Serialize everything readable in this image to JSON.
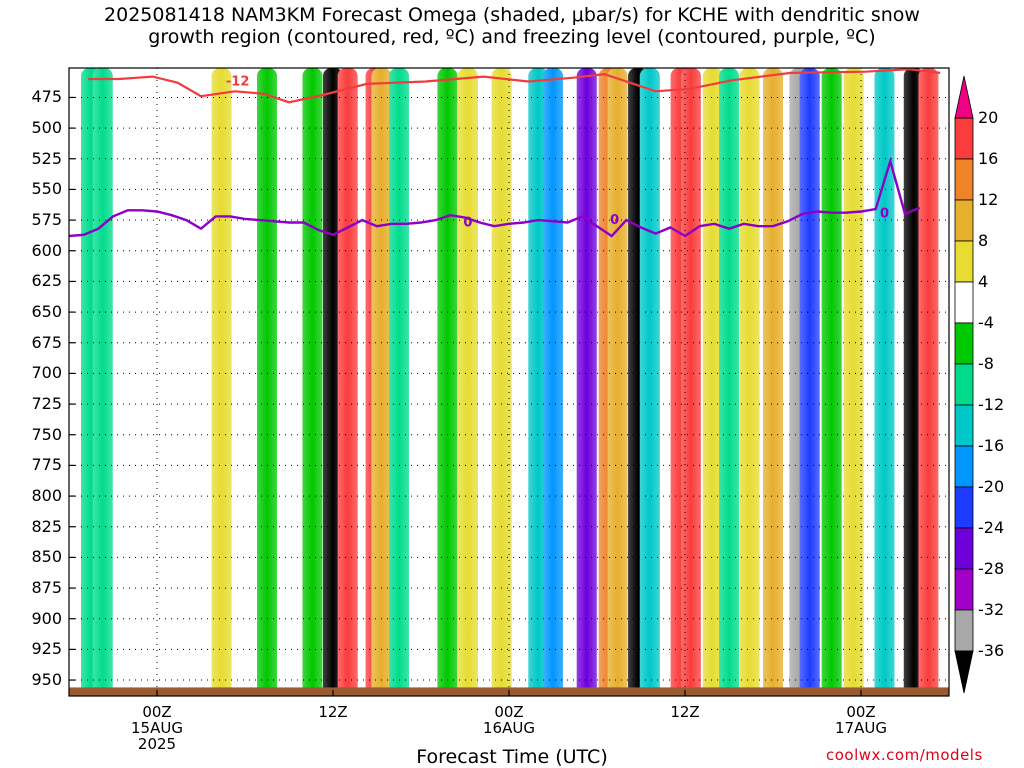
{
  "title": {
    "line1": "2025081418 NAM3KM Forecast Omega (shaded, μbar/s) for KCHE with dendritic snow",
    "line2": "growth region (contoured, red, ºC) and freezing level (contoured, purple, ºC)"
  },
  "credit": "coolwx.com/models",
  "colors": {
    "omega_scale": [
      "#000000",
      "#a8a8a8",
      "#a000c8",
      "#6e00dc",
      "#1e3cff",
      "#0096ff",
      "#00c8c8",
      "#00dc8c",
      "#00c800",
      "#ffffff",
      "#e6dc32",
      "#e6af2d",
      "#f08228",
      "#fa3c3c",
      "#f00082"
    ],
    "dgz_contour": "#f03c3c",
    "freezing_contour": "#8c00c8",
    "terrain": "#9b5a32"
  },
  "chart_data": {
    "type": "heatmap",
    "xlabel": "Forecast Time (UTC)",
    "x_ticks": [
      {
        "label": "00Z",
        "sub": "15AUG",
        "sub2": "2025",
        "hour": 6
      },
      {
        "label": "12Z",
        "sub": "",
        "sub2": "",
        "hour": 18
      },
      {
        "label": "00Z",
        "sub": "16AUG",
        "sub2": "",
        "hour": 30
      },
      {
        "label": "12Z",
        "sub": "",
        "sub2": "",
        "hour": 42
      },
      {
        "label": "00Z",
        "sub": "17AUG",
        "sub2": "",
        "hour": 54
      }
    ],
    "xlim_hours": [
      0,
      60
    ],
    "y_ticks": [
      475,
      500,
      525,
      550,
      575,
      600,
      625,
      650,
      675,
      700,
      725,
      750,
      775,
      800,
      825,
      850,
      875,
      900,
      925,
      950
    ],
    "ylim_hpa": [
      963,
      451
    ],
    "colorbar_ticks": [
      20,
      16,
      12,
      8,
      4,
      -4,
      -8,
      -12,
      -16,
      -20,
      -24,
      -28,
      -32,
      -36
    ],
    "colorbar_bounds": [
      24,
      20,
      16,
      12,
      8,
      4,
      -4,
      -8,
      -12,
      -16,
      -20,
      -24,
      -28,
      -32,
      -36,
      -40
    ],
    "grid": true,
    "omega_columns": [
      {
        "hour": 1.5,
        "value": -8
      },
      {
        "hour": 2.3,
        "value": -8
      },
      {
        "hour": 8.2,
        "value": 4
      },
      {
        "hour": 10.4,
        "value": 6
      },
      {
        "hour": 13.5,
        "value": -6
      },
      {
        "hour": 16.6,
        "value": -6
      },
      {
        "hour": 18.0,
        "value": -36
      },
      {
        "hour": 19.0,
        "value": 20
      },
      {
        "hour": 20.9,
        "value": 20
      },
      {
        "hour": 21.3,
        "value": 10
      },
      {
        "hour": 22.5,
        "value": -8
      },
      {
        "hour": 25.8,
        "value": -6
      },
      {
        "hour": 27.2,
        "value": 6
      },
      {
        "hour": 29.5,
        "value": 6
      },
      {
        "hour": 32.0,
        "value": -14
      },
      {
        "hour": 33.0,
        "value": -16
      },
      {
        "hour": 35.3,
        "value": -24
      },
      {
        "hour": 36.8,
        "value": 14
      },
      {
        "hour": 37.4,
        "value": 10
      },
      {
        "hour": 38.8,
        "value": -36
      },
      {
        "hour": 39.6,
        "value": -14
      },
      {
        "hour": 41.7,
        "value": 20
      },
      {
        "hour": 42.4,
        "value": 20
      },
      {
        "hour": 43.9,
        "value": 6
      },
      {
        "hour": 45.0,
        "value": -8
      },
      {
        "hour": 46.4,
        "value": 6
      },
      {
        "hour": 48.0,
        "value": 10
      },
      {
        "hour": 49.8,
        "value": -34
      },
      {
        "hour": 50.5,
        "value": -20
      },
      {
        "hour": 52.0,
        "value": -6
      },
      {
        "hour": 53.5,
        "value": 6
      },
      {
        "hour": 55.6,
        "value": -12
      },
      {
        "hour": 57.6,
        "value": -36
      },
      {
        "hour": 58.6,
        "value": 20
      }
    ],
    "freezing_level": {
      "contour_label": "0",
      "points": [
        [
          0,
          588
        ],
        [
          1,
          587
        ],
        [
          2,
          582
        ],
        [
          3,
          572
        ],
        [
          4,
          567
        ],
        [
          5,
          567
        ],
        [
          6,
          568
        ],
        [
          7,
          571
        ],
        [
          8,
          575
        ],
        [
          9,
          582
        ],
        [
          10,
          572
        ],
        [
          11,
          572
        ],
        [
          12,
          574
        ],
        [
          13,
          575
        ],
        [
          14,
          576
        ],
        [
          15,
          577
        ],
        [
          16,
          577
        ],
        [
          17,
          583
        ],
        [
          18,
          587
        ],
        [
          19,
          581
        ],
        [
          20,
          575
        ],
        [
          21,
          580
        ],
        [
          22,
          578
        ],
        [
          23,
          578
        ],
        [
          24,
          577
        ],
        [
          25,
          575
        ],
        [
          26,
          571
        ],
        [
          27,
          573
        ],
        [
          28,
          577
        ],
        [
          29,
          580
        ],
        [
          30,
          578
        ],
        [
          31,
          577
        ],
        [
          32,
          575
        ],
        [
          33,
          576
        ],
        [
          34,
          577
        ],
        [
          35,
          572
        ],
        [
          36,
          580
        ],
        [
          37,
          588
        ],
        [
          38,
          575
        ],
        [
          39,
          581
        ],
        [
          40,
          586
        ],
        [
          41,
          581
        ],
        [
          42,
          588
        ],
        [
          43,
          580
        ],
        [
          44,
          578
        ],
        [
          45,
          582
        ],
        [
          46,
          578
        ],
        [
          47,
          580
        ],
        [
          48,
          580
        ],
        [
          49,
          576
        ],
        [
          50,
          570
        ],
        [
          51,
          568
        ],
        [
          52,
          569
        ],
        [
          53,
          569
        ],
        [
          54,
          568
        ],
        [
          55,
          566
        ],
        [
          56,
          527
        ],
        [
          57,
          570
        ],
        [
          58,
          565
        ]
      ]
    },
    "dgz_contour": {
      "contour_label": "-12",
      "points": [
        [
          1.3,
          460
        ],
        [
          3.4,
          460
        ],
        [
          5.7,
          458
        ],
        [
          7.4,
          463
        ],
        [
          9.0,
          474
        ],
        [
          11.3,
          470
        ],
        [
          13.3,
          472
        ],
        [
          15.0,
          479
        ],
        [
          17.3,
          473
        ],
        [
          20.3,
          464
        ],
        [
          24.3,
          462
        ],
        [
          28.3,
          458
        ],
        [
          31.3,
          462
        ],
        [
          34.3,
          459
        ],
        [
          36.5,
          456
        ],
        [
          40.0,
          470
        ],
        [
          42.3,
          468
        ],
        [
          45.2,
          461
        ],
        [
          49.2,
          455
        ],
        [
          54.3,
          454
        ],
        [
          57.3,
          452
        ],
        [
          59.4,
          455
        ]
      ]
    }
  }
}
